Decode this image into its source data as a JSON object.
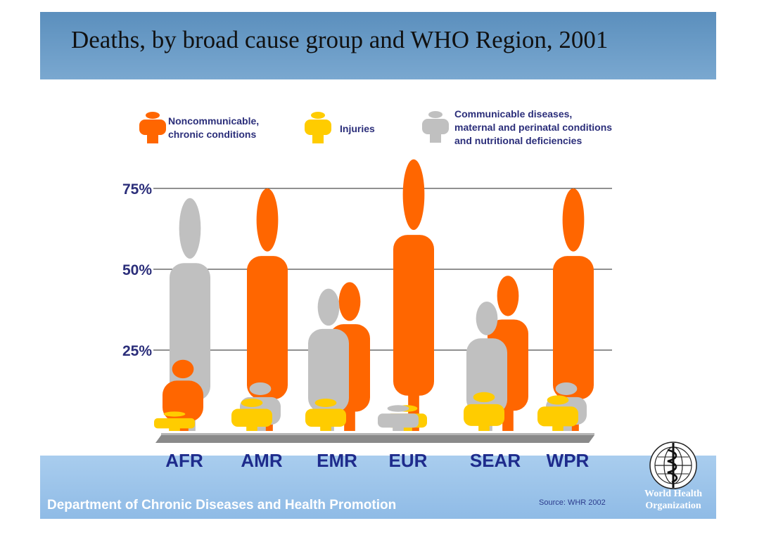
{
  "slide": {
    "title": "Deaths, by broad cause group and WHO Region, 2001",
    "department": "Department of Chronic Diseases and Health Promotion",
    "source": "Source: WHR 2002",
    "org_name": "World Health Organization"
  },
  "legend": [
    {
      "key": "ncd",
      "label": "Noncommunicable, chronic conditions",
      "lines": [
        "Noncommunicable,",
        "chronic conditions"
      ],
      "color": "#ff6600"
    },
    {
      "key": "inj",
      "label": "Injuries",
      "lines": [
        "Injuries"
      ],
      "color": "#ffcc00"
    },
    {
      "key": "com",
      "label": "Communicable diseases, maternal and perinatal conditions and nutritional deficiencies",
      "lines": [
        "Communicable diseases,",
        "maternal and perinatal conditions",
        "and nutritional deficiencies"
      ],
      "color": "#c0c0c0"
    }
  ],
  "colors": {
    "ncd": "#ff6600",
    "inj": "#ffcc00",
    "com": "#c0c0c0",
    "axis_text": "#2b2e7a",
    "region_text": "#1e2b8c"
  },
  "chart_data": {
    "type": "bar",
    "title": "Deaths, by broad cause group and WHO Region, 2001",
    "categories": [
      "AFR",
      "AMR",
      "EMR",
      "EUR",
      "SEAR",
      "WPR"
    ],
    "series": [
      {
        "name": "Noncommunicable, chronic conditions",
        "key": "ncd",
        "values": [
          22,
          75,
          46,
          84,
          48,
          75
        ]
      },
      {
        "name": "Injuries",
        "key": "inj",
        "values": [
          6,
          10,
          10,
          8,
          12,
          11
        ]
      },
      {
        "name": "Communicable diseases, maternal and perinatal conditions and nutritional deficiencies",
        "key": "com",
        "values": [
          72,
          15,
          44,
          8,
          40,
          15
        ]
      }
    ],
    "y_ticks": [
      {
        "value": 25,
        "label": "25%"
      },
      {
        "value": 50,
        "label": "50%"
      },
      {
        "value": 75,
        "label": "75%"
      }
    ],
    "ylim": [
      0,
      84
    ],
    "grid": true,
    "legend_position": "top"
  }
}
